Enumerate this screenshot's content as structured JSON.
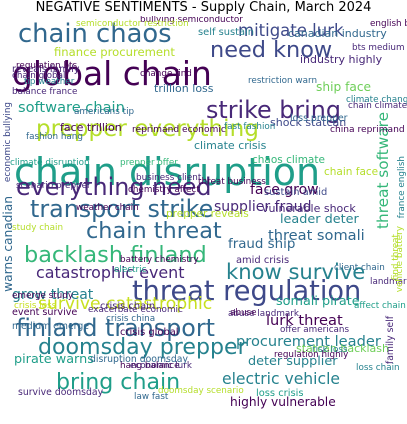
{
  "title": "NEGATIVE SENTIMENTS - Supply Chain, March 2024",
  "palette": [
    "#440154",
    "#482878",
    "#3e4989",
    "#31688e",
    "#26828e",
    "#1f9e89",
    "#35b779",
    "#6ece58",
    "#b5de2b",
    "#c8e020"
  ],
  "words": [
    {
      "text": "chain disruption",
      "weight": 1.0,
      "color": "#1f9e89"
    },
    {
      "text": "global chain",
      "weight": 0.86,
      "color": "#440154"
    },
    {
      "text": "threat regulation",
      "weight": 0.7,
      "color": "#3e4989"
    },
    {
      "text": "chain chaos",
      "weight": 0.66,
      "color": "#31688e"
    },
    {
      "text": "strike bring",
      "weight": 0.6,
      "color": "#482878"
    },
    {
      "text": "transport strike",
      "weight": 0.6,
      "color": "#31688e"
    },
    {
      "text": "finland transport",
      "weight": 0.6,
      "color": "#31688e"
    },
    {
      "text": "everything need",
      "weight": 0.6,
      "color": "#482878"
    },
    {
      "text": "prepper everything",
      "weight": 0.58,
      "color": "#b5de2b"
    },
    {
      "text": "need know",
      "weight": 0.56,
      "color": "#3e4989"
    },
    {
      "text": "chain threat",
      "weight": 0.56,
      "color": "#31688e"
    },
    {
      "text": "backlash finland",
      "weight": 0.56,
      "color": "#35b779"
    },
    {
      "text": "doomsday prepper",
      "weight": 0.55,
      "color": "#26828e"
    },
    {
      "text": "bring chain",
      "weight": 0.55,
      "color": "#1f9e89"
    },
    {
      "text": "know survive",
      "weight": 0.52,
      "color": "#26828e"
    },
    {
      "text": "survive catastrophic",
      "weight": 0.4,
      "color": "#c8e020"
    },
    {
      "text": "mitigate lurk",
      "weight": 0.38,
      "color": "#3e4989"
    },
    {
      "text": "catastrophic event",
      "weight": 0.36,
      "color": "#482878"
    },
    {
      "text": "electric vehicle",
      "weight": 0.35,
      "color": "#26828e"
    },
    {
      "text": "software chain",
      "weight": 0.32,
      "color": "#1f9e89"
    },
    {
      "text": "lurk threat",
      "weight": 0.32,
      "color": "#440154"
    },
    {
      "text": "procurement leader",
      "weight": 0.32,
      "color": "#26828e"
    },
    {
      "text": "threat somali",
      "weight": 0.32,
      "color": "#31688e"
    },
    {
      "text": "face grow",
      "weight": 0.3,
      "color": "#440154"
    },
    {
      "text": "supplier fraud",
      "weight": 0.3,
      "color": "#482878"
    },
    {
      "text": "grow threat",
      "weight": 0.3,
      "color": "#26828e"
    },
    {
      "text": "fraud ship",
      "weight": 0.28,
      "color": "#31688e"
    },
    {
      "text": "leader deter",
      "weight": 0.26,
      "color": "#26828e"
    },
    {
      "text": "threat software",
      "weight": 0.34,
      "color": "#35b779",
      "vertical": true
    },
    {
      "text": "somali pirate",
      "weight": 0.26,
      "color": "#1f9e89"
    },
    {
      "text": "deter supplier",
      "weight": 0.26,
      "color": "#26828e"
    },
    {
      "text": "pirate warns",
      "weight": 0.26,
      "color": "#1f9e89"
    },
    {
      "text": "highly vulnerable",
      "weight": 0.24,
      "color": "#440154"
    },
    {
      "text": "ship face",
      "weight": 0.24,
      "color": "#6ece58"
    },
    {
      "text": "finance procurement",
      "weight": 0.22,
      "color": "#b5de2b"
    },
    {
      "text": "canadian industry",
      "weight": 0.2,
      "color": "#31688e"
    },
    {
      "text": "industry highly",
      "weight": 0.2,
      "color": "#482878"
    },
    {
      "text": "trillion loss",
      "weight": 0.2,
      "color": "#31688e"
    },
    {
      "text": "face trillion",
      "weight": 0.2,
      "color": "#440154"
    },
    {
      "text": "shock statcan",
      "weight": 0.2,
      "color": "#3e4989"
    },
    {
      "text": "climate crisis",
      "weight": 0.2,
      "color": "#26828e"
    },
    {
      "text": "vulnerable shock",
      "weight": 0.2,
      "color": "#482878"
    },
    {
      "text": "statcan backlash",
      "weight": 0.2,
      "color": "#6ece58"
    },
    {
      "text": "warns canadian",
      "weight": 0.24,
      "color": "#31688e",
      "vertical": true
    },
    {
      "text": "chaos climate",
      "weight": 0.18,
      "color": "#35b779"
    },
    {
      "text": "chain face",
      "weight": 0.18,
      "color": "#b5de2b"
    },
    {
      "text": "prepper reveals",
      "weight": 0.18,
      "color": "#b5de2b"
    },
    {
      "text": "crisis chain",
      "weight": 0.16,
      "color": "#482878"
    },
    {
      "text": "crisis global",
      "weight": 0.16,
      "color": "#440154"
    },
    {
      "text": "loss crisis",
      "weight": 0.16,
      "color": "#1f9e89"
    },
    {
      "text": "amid crisis",
      "weight": 0.16,
      "color": "#482878"
    },
    {
      "text": "sustain amid",
      "weight": 0.16,
      "color": "#3e4989"
    },
    {
      "text": "self sustain",
      "weight": 0.16,
      "color": "#26828e"
    },
    {
      "text": "reveals family",
      "weight": 0.15,
      "color": "#482878"
    },
    {
      "text": "event survive",
      "weight": 0.15,
      "color": "#440154"
    },
    {
      "text": "medium emerge",
      "weight": 0.14,
      "color": "#31688e"
    },
    {
      "text": "survive doomsday",
      "weight": 0.14,
      "color": "#482878"
    },
    {
      "text": "disruption doomsday",
      "weight": 0.14,
      "color": "#31688e"
    },
    {
      "text": "loss prepper",
      "weight": 0.14,
      "color": "#31688e"
    },
    {
      "text": "reprimand economic",
      "weight": 0.13,
      "color": "#440154"
    },
    {
      "text": "china reprimand",
      "weight": 0.13,
      "color": "#440154"
    },
    {
      "text": "climate disruption",
      "weight": 0.12,
      "color": "#1f9e89"
    },
    {
      "text": "threat business",
      "weight": 0.12,
      "color": "#440154"
    },
    {
      "text": "business client",
      "weight": 0.12,
      "color": "#482878"
    },
    {
      "text": "regulation highly",
      "weight": 0.12,
      "color": "#440154"
    },
    {
      "text": "restriction warn",
      "weight": 0.12,
      "color": "#31688e"
    },
    {
      "text": "risk loss",
      "weight": 0.12,
      "color": "#26828e"
    },
    {
      "text": "hang balance",
      "weight": 0.12,
      "color": "#440154"
    },
    {
      "text": "crisis china",
      "weight": 0.12,
      "color": "#31688e"
    },
    {
      "text": "offer americans",
      "weight": 0.12,
      "color": "#482878"
    },
    {
      "text": "climate change",
      "weight": 0.12,
      "color": "#26828e"
    },
    {
      "text": "loss chain",
      "weight": 0.12,
      "color": "#26828e"
    },
    {
      "text": "bullying semiconductor",
      "weight": 0.12,
      "color": "#440154"
    },
    {
      "text": "economic lurk",
      "weight": 0.12,
      "color": "#482878"
    },
    {
      "text": "regulation bts",
      "weight": 0.12,
      "color": "#440154"
    },
    {
      "text": "chain global",
      "weight": 0.12,
      "color": "#482878"
    },
    {
      "text": "bts medium",
      "weight": 0.12,
      "color": "#482878"
    },
    {
      "text": "english bts",
      "weight": 0.12,
      "color": "#440154"
    },
    {
      "text": "americans tip",
      "weight": 0.12,
      "color": "#31688e"
    },
    {
      "text": "tip weather",
      "weight": 0.12,
      "color": "#26828e"
    },
    {
      "text": "balance france",
      "weight": 0.12,
      "color": "#482878"
    },
    {
      "text": "fashion hang",
      "weight": 0.12,
      "color": "#31688e"
    },
    {
      "text": "prepper offer",
      "weight": 0.12,
      "color": "#35b779"
    },
    {
      "text": "chemistry affect",
      "weight": 0.12,
      "color": "#440154"
    },
    {
      "text": "scenario prepper",
      "weight": 0.12,
      "color": "#482878"
    },
    {
      "text": "weather chain",
      "weight": 0.12,
      "color": "#440154"
    },
    {
      "text": "exacerbate economic",
      "weight": 0.12,
      "color": "#482878"
    },
    {
      "text": "abuse landmark",
      "weight": 0.12,
      "color": "#482878"
    },
    {
      "text": "battery chemistry",
      "weight": 0.12,
      "color": "#440154"
    },
    {
      "text": "emerge study",
      "weight": 0.12,
      "color": "#440154"
    },
    {
      "text": "landmark law",
      "weight": 0.12,
      "color": "#482878"
    },
    {
      "text": "client chain",
      "weight": 0.12,
      "color": "#31688e"
    },
    {
      "text": "affect chain",
      "weight": 0.12,
      "color": "#1f9e89"
    },
    {
      "text": "abuse",
      "weight": 0.12,
      "color": "#440154"
    },
    {
      "text": "fast fashion",
      "weight": 0.12,
      "color": "#26828e"
    },
    {
      "text": "change find",
      "weight": 0.12,
      "color": "#440154"
    },
    {
      "text": "law fast",
      "weight": 0.12,
      "color": "#31688e"
    },
    {
      "text": "doomsday scenario",
      "weight": 0.12,
      "color": "#b5de2b"
    },
    {
      "text": "chain climate",
      "weight": 0.12,
      "color": "#482878"
    },
    {
      "text": "electric",
      "weight": 0.12,
      "color": "#1f9e89"
    },
    {
      "text": "semiconductor restriction",
      "weight": 0.12,
      "color": "#b5de2b"
    },
    {
      "text": "economic bullying",
      "weight": 0.12,
      "color": "#3e4989",
      "vertical": true
    },
    {
      "text": "france english",
      "weight": 0.12,
      "color": "#26828e",
      "vertical": true
    },
    {
      "text": "vehicle battery",
      "weight": 0.12,
      "color": "#b5de2b",
      "vertical": true
    },
    {
      "text": "family self",
      "weight": 0.14,
      "color": "#482878",
      "vertical": true
    },
    {
      "text": "find threat",
      "weight": 0.12,
      "color": "#b5de2b",
      "vertical": true
    },
    {
      "text": "study chain",
      "weight": 0.12,
      "color": "#b5de2b"
    },
    {
      "text": "crisis loss",
      "weight": 0.12,
      "color": "#c8e020"
    }
  ]
}
